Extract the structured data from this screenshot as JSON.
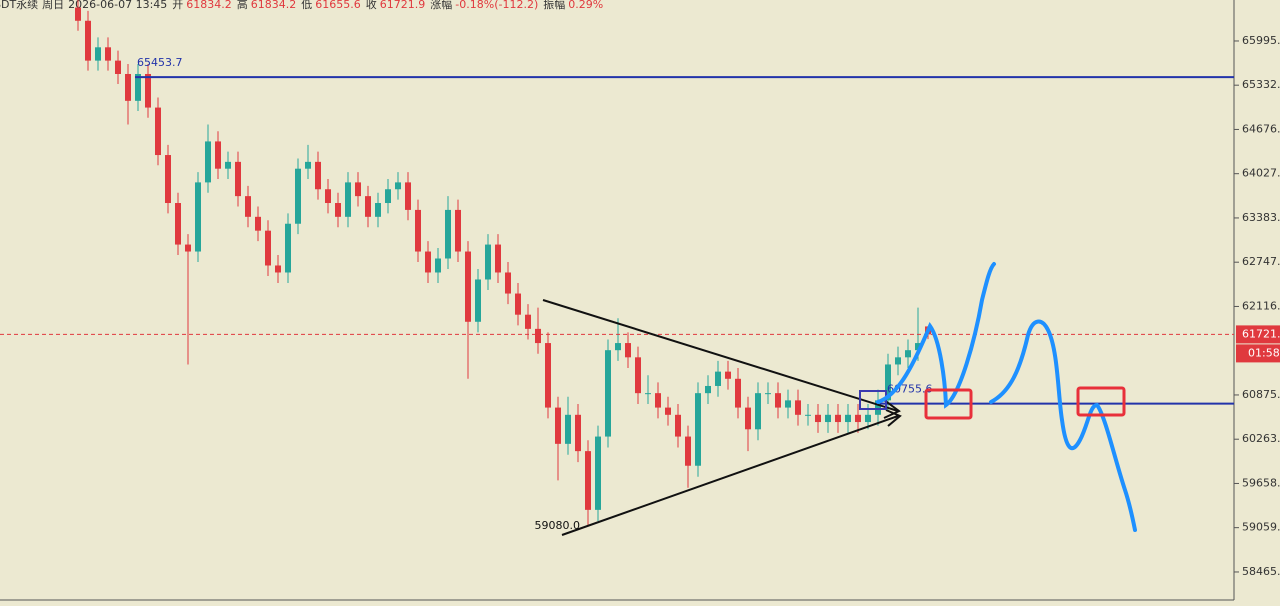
{
  "header": {
    "symbol": "SDT永续",
    "day": "周日",
    "time": "2026-06-07 13:45",
    "fields": [
      {
        "name": "开",
        "value": "61834.2"
      },
      {
        "name": "高",
        "value": "61834.2"
      },
      {
        "name": "低",
        "value": "61655.6"
      },
      {
        "name": "收",
        "value": "61721.9"
      },
      {
        "name": "涨幅",
        "value": "-0.18%(-112.2)"
      },
      {
        "name": "振幅",
        "value": "0.29%"
      }
    ]
  },
  "chart_data": {
    "type": "candlestick",
    "log_scale": true,
    "grid": false,
    "up_color": "#26a69a",
    "down_color": "#e0393e",
    "ylim": [
      58093,
      66615
    ],
    "yticks": [
      65995.1,
      65332.9,
      64676.6,
      {
        "value": 64027.0,
        "label": "64027.0"
      },
      63383.8,
      62747.1,
      62116.8,
      60875.1,
      60263.6,
      59658.3,
      59059.7,
      58465.7
    ],
    "levels": [
      65453.7,
      60755.6
    ],
    "low_annotation": {
      "value": 59080.0,
      "label": "59080.0"
    },
    "last_price": 61721.9,
    "countdown": "01:58",
    "candles": [
      [
        66500,
        66650,
        66150,
        66300
      ],
      [
        66300,
        66450,
        65550,
        65700
      ],
      [
        65700,
        66050,
        65550,
        65900
      ],
      [
        65900,
        66050,
        65550,
        65700
      ],
      [
        65700,
        65850,
        65350,
        65500
      ],
      [
        65500,
        65650,
        64750,
        65100
      ],
      [
        65100,
        65650,
        64950,
        65500
      ],
      [
        65500,
        65650,
        64850,
        65000
      ],
      [
        65000,
        65150,
        64150,
        64300
      ],
      [
        64300,
        64450,
        63450,
        63600
      ],
      [
        63600,
        63750,
        62850,
        63000
      ],
      [
        63000,
        63150,
        61300,
        62900
      ],
      [
        62900,
        64050,
        62750,
        63900
      ],
      [
        63900,
        64750,
        63750,
        64500
      ],
      [
        64500,
        64650,
        63950,
        64100
      ],
      [
        64100,
        64350,
        63950,
        64200
      ],
      [
        64200,
        64350,
        63550,
        63700
      ],
      [
        63700,
        63850,
        63250,
        63400
      ],
      [
        63400,
        63550,
        63050,
        63200
      ],
      [
        63200,
        63350,
        62550,
        62700
      ],
      [
        62700,
        62850,
        62450,
        62600
      ],
      [
        62600,
        63450,
        62450,
        63300
      ],
      [
        63300,
        64250,
        63150,
        64100
      ],
      [
        64100,
        64450,
        63950,
        64200
      ],
      [
        64200,
        64350,
        63650,
        63800
      ],
      [
        63800,
        63950,
        63450,
        63600
      ],
      [
        63600,
        63750,
        63250,
        63400
      ],
      [
        63400,
        64050,
        63250,
        63900
      ],
      [
        63900,
        64050,
        63550,
        63700
      ],
      [
        63700,
        63850,
        63250,
        63400
      ],
      [
        63400,
        63750,
        63250,
        63600
      ],
      [
        63600,
        63950,
        63450,
        63800
      ],
      [
        63800,
        64050,
        63650,
        63900
      ],
      [
        63900,
        64050,
        63350,
        63500
      ],
      [
        63500,
        63650,
        62750,
        62900
      ],
      [
        62900,
        63050,
        62450,
        62600
      ],
      [
        62600,
        62950,
        62450,
        62800
      ],
      [
        62800,
        63700,
        62650,
        63500
      ],
      [
        63500,
        63650,
        62750,
        62900
      ],
      [
        62900,
        63050,
        61100,
        61900
      ],
      [
        61900,
        62650,
        61750,
        62500
      ],
      [
        62500,
        63150,
        62350,
        63000
      ],
      [
        63000,
        63150,
        62450,
        62600
      ],
      [
        62600,
        62750,
        62150,
        62300
      ],
      [
        62300,
        62450,
        61850,
        62000
      ],
      [
        62000,
        62150,
        61650,
        61800
      ],
      [
        61800,
        62100,
        61450,
        61600
      ],
      [
        61600,
        61750,
        60550,
        60700
      ],
      [
        60700,
        60850,
        59700,
        60200
      ],
      [
        60200,
        60850,
        60050,
        60600
      ],
      [
        60600,
        60750,
        59950,
        60100
      ],
      [
        60100,
        60250,
        59080.0,
        59300
      ],
      [
        59300,
        60450,
        59150,
        60300
      ],
      [
        60300,
        61650,
        60150,
        61500
      ],
      [
        61500,
        61950,
        61350,
        61600
      ],
      [
        61600,
        61750,
        61250,
        61400
      ],
      [
        61400,
        61550,
        60750,
        60900
      ],
      [
        60900,
        61150,
        60750,
        60900
      ],
      [
        60900,
        61050,
        60550,
        60700
      ],
      [
        60700,
        60850,
        60450,
        60600
      ],
      [
        60600,
        60750,
        60150,
        60300
      ],
      [
        60300,
        60450,
        59600,
        59900
      ],
      [
        59900,
        61050,
        59750,
        60900
      ],
      [
        60900,
        61150,
        60750,
        61000
      ],
      [
        61000,
        61350,
        60850,
        61200
      ],
      [
        61200,
        61350,
        60950,
        61100
      ],
      [
        61100,
        61250,
        60550,
        60700
      ],
      [
        60700,
        60850,
        60100,
        60400
      ],
      [
        60400,
        61050,
        60250,
        60900
      ],
      [
        60900,
        61050,
        60750,
        60900
      ],
      [
        60900,
        61050,
        60550,
        60700
      ],
      [
        60700,
        60950,
        60550,
        60800
      ],
      [
        60800,
        60950,
        60450,
        60600
      ],
      [
        60600,
        60750,
        60450,
        60600
      ],
      [
        60600,
        60750,
        60350,
        60500
      ],
      [
        60500,
        60750,
        60350,
        60600
      ],
      [
        60600,
        60750,
        60350,
        60500
      ],
      [
        60500,
        60750,
        60350,
        60600
      ],
      [
        60600,
        60750,
        60350,
        60500
      ],
      [
        60500,
        60750,
        60400,
        60600
      ],
      [
        60600,
        60950,
        60450,
        60800
      ],
      [
        60800,
        61450,
        60650,
        61300
      ],
      [
        61300,
        61550,
        61150,
        61400
      ],
      [
        61400,
        61650,
        61250,
        61500
      ],
      [
        61500,
        62100,
        61350,
        61600
      ],
      [
        61834.2,
        61834.2,
        61655.6,
        61721.9
      ]
    ]
  }
}
